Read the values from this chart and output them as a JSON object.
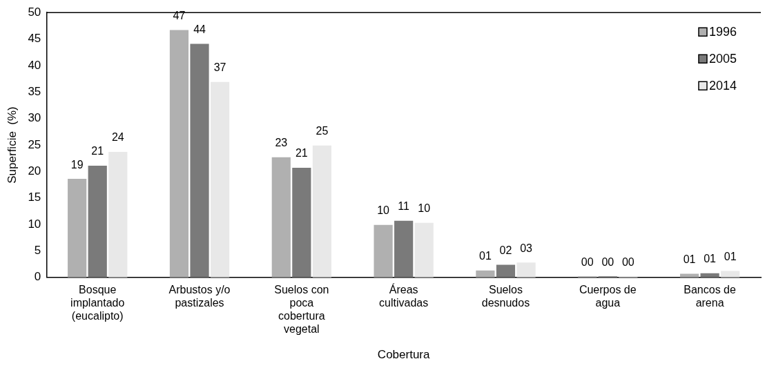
{
  "chart_data": {
    "type": "bar",
    "xlabel": "Cobertura",
    "ylabel": "Superficie  (%)",
    "categories": [
      "Bosque implantado (eucalipto)",
      "Arbustos y/o pastizales",
      "Suelos con poca cobertura vegetal",
      "Áreas cultivadas",
      "Suelos desnudos",
      "Cuerpos de agua",
      "Bancos de arena"
    ],
    "series": [
      {
        "name": "1996",
        "color": "#b0b0b0",
        "values": [
          18.6,
          46.7,
          22.7,
          9.9,
          1.3,
          0.2,
          0.7
        ],
        "value_labels": [
          "19",
          "47",
          "23",
          "10",
          "01",
          "00",
          "01"
        ]
      },
      {
        "name": "2005",
        "color": "#7a7a7a",
        "values": [
          21.1,
          44.1,
          20.7,
          10.7,
          2.4,
          0.2,
          0.8
        ],
        "value_labels": [
          "21",
          "44",
          "21",
          "11",
          "02",
          "00",
          "01"
        ]
      },
      {
        "name": "2014",
        "color": "#e8e8e8",
        "values": [
          23.7,
          36.9,
          24.9,
          10.3,
          2.8,
          0.2,
          1.2
        ],
        "value_labels": [
          "24",
          "37",
          "25",
          "10",
          "03",
          "00",
          "01"
        ]
      }
    ],
    "ylim": [
      0,
      50
    ],
    "yticks": [
      0,
      5,
      10,
      15,
      20,
      25,
      30,
      35,
      40,
      45,
      50
    ],
    "grid": false,
    "legend": "top right"
  }
}
